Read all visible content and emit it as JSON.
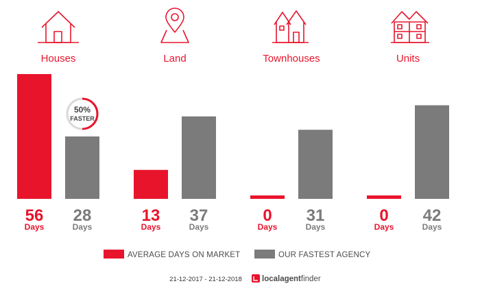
{
  "colors": {
    "average": "#e8142c",
    "fastest": "#7b7b7b",
    "badge_ring_track": "#d9d9d9"
  },
  "chart_data": {
    "type": "bar",
    "categories": [
      "Houses",
      "Land",
      "Townhouses",
      "Units"
    ],
    "category_icons": [
      "house-icon",
      "location-pin-icon",
      "townhouses-icon",
      "units-icon"
    ],
    "series": [
      {
        "name": "AVERAGE DAYS ON MARKET",
        "values": [
          56,
          13,
          0,
          0
        ]
      },
      {
        "name": "OUR FASTEST AGENCY",
        "values": [
          28,
          37,
          31,
          42
        ]
      }
    ],
    "unit_label": "Days",
    "ylim": [
      0,
      56
    ],
    "grid": false,
    "legend_position": "bottom",
    "badge": {
      "category": "Houses",
      "percent_text": "50%",
      "label": "FASTER",
      "fraction": 0.5
    }
  },
  "footer": {
    "date_range": "21-12-2017 - 21-12-2018",
    "brand_bold": "localagent",
    "brand_light": "finder"
  }
}
